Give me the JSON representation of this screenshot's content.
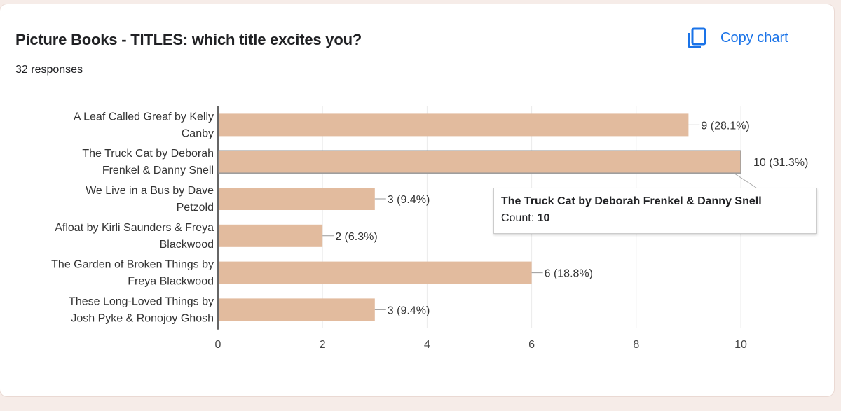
{
  "header": {
    "title": "Picture Books - TITLES: which title excites you?",
    "responses": "32 responses",
    "copy_label": "Copy chart"
  },
  "tooltip": {
    "title": "The Truck Cat by Deborah Frenkel & Danny Snell",
    "count_label": "Count:",
    "count_value": "10"
  },
  "colors": {
    "bar": "#e2bb9e",
    "accent": "#1a73e8"
  },
  "chart_data": {
    "type": "bar",
    "orientation": "horizontal",
    "categories": [
      [
        "A Leaf Called Greaf by Kelly",
        "Canby"
      ],
      [
        "The Truck Cat by Deborah",
        "Frenkel & Danny Snell"
      ],
      [
        "We Live in a Bus by Dave",
        "Petzold"
      ],
      [
        "Afloat by Kirli Saunders & Freya",
        "Blackwood"
      ],
      [
        "The Garden of Broken Things by",
        "Freya Blackwood"
      ],
      [
        "These Long-Loved Things by",
        "Josh Pyke & Ronojoy Ghosh"
      ]
    ],
    "values": [
      9,
      10,
      3,
      2,
      6,
      3
    ],
    "data_labels": [
      "9 (28.1%)",
      "10 (31.3%)",
      "3 (9.4%)",
      "2 (6.3%)",
      "6 (18.8%)",
      "3 (9.4%)"
    ],
    "xlim": [
      0,
      10
    ],
    "xticks": [
      0,
      2,
      4,
      6,
      8,
      10
    ],
    "grid": true,
    "highlighted_index": 1
  }
}
